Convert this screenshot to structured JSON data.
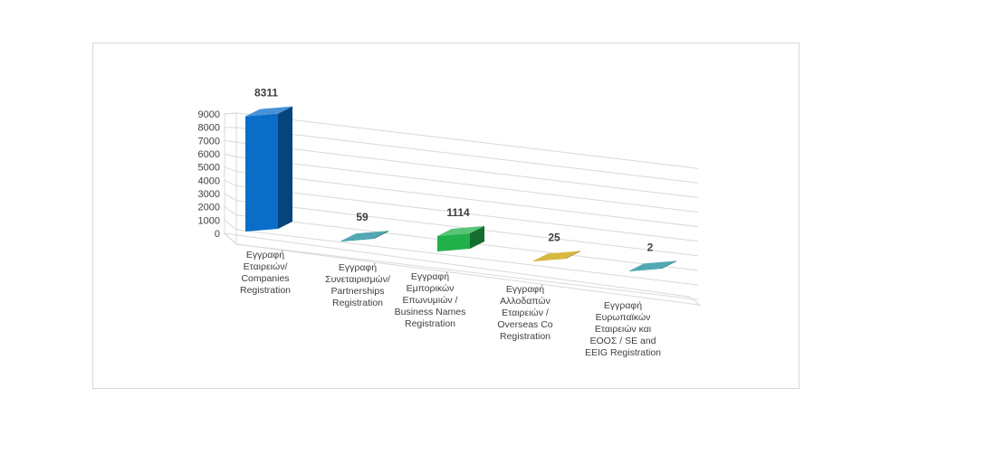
{
  "chart_data": {
    "type": "bar",
    "ylim": [
      0,
      9000
    ],
    "yticks": [
      "0",
      "1000",
      "2000",
      "3000",
      "4000",
      "5000",
      "6000",
      "7000",
      "8000",
      "9000"
    ],
    "grid": true,
    "categories": [
      "Εγγραφή Εταιρειών/ Companies Registration",
      "Εγγραφή Συνεταιρισμών/ Partnerships Registration",
      "Εγγραφή Εμπορικών Επωνυμιών / Business Names Registration",
      "Εγγραφή Αλλοδαπών Εταιρειών / Overseas Co Registration",
      "Εγγραφή Ευρωπαϊκών Εταιρειών και ΕΟΟΣ / SE and EEIG Registration"
    ],
    "category_lines": [
      [
        "Εγγραφή",
        "Εταιρειών/",
        "Companies",
        "Registration"
      ],
      [
        "Εγγραφή",
        "Συνεταιρισμών/",
        "Partnerships",
        "Registration"
      ],
      [
        "Εγγραφή",
        "Εμπορικών",
        "Επωνυμιών /",
        "Business Names",
        "Registration"
      ],
      [
        "Εγγραφή",
        "Αλλοδαπών",
        "Εταιρειών /",
        "Overseas Co",
        "Registration"
      ],
      [
        "Εγγραφή",
        "Ευρωπαϊκών",
        "Εταιρειών και",
        "ΕΟΟΣ / SE and",
        "EEIG Registration"
      ]
    ],
    "values": [
      8311,
      59,
      1114,
      25,
      2
    ],
    "data_labels": [
      "8311",
      "59",
      "1114",
      "25",
      "2"
    ],
    "colors": [
      "#0a6ec8",
      "#1a8b9a",
      "#22b04b",
      "#c9a000",
      "#1a8b9a"
    ]
  }
}
